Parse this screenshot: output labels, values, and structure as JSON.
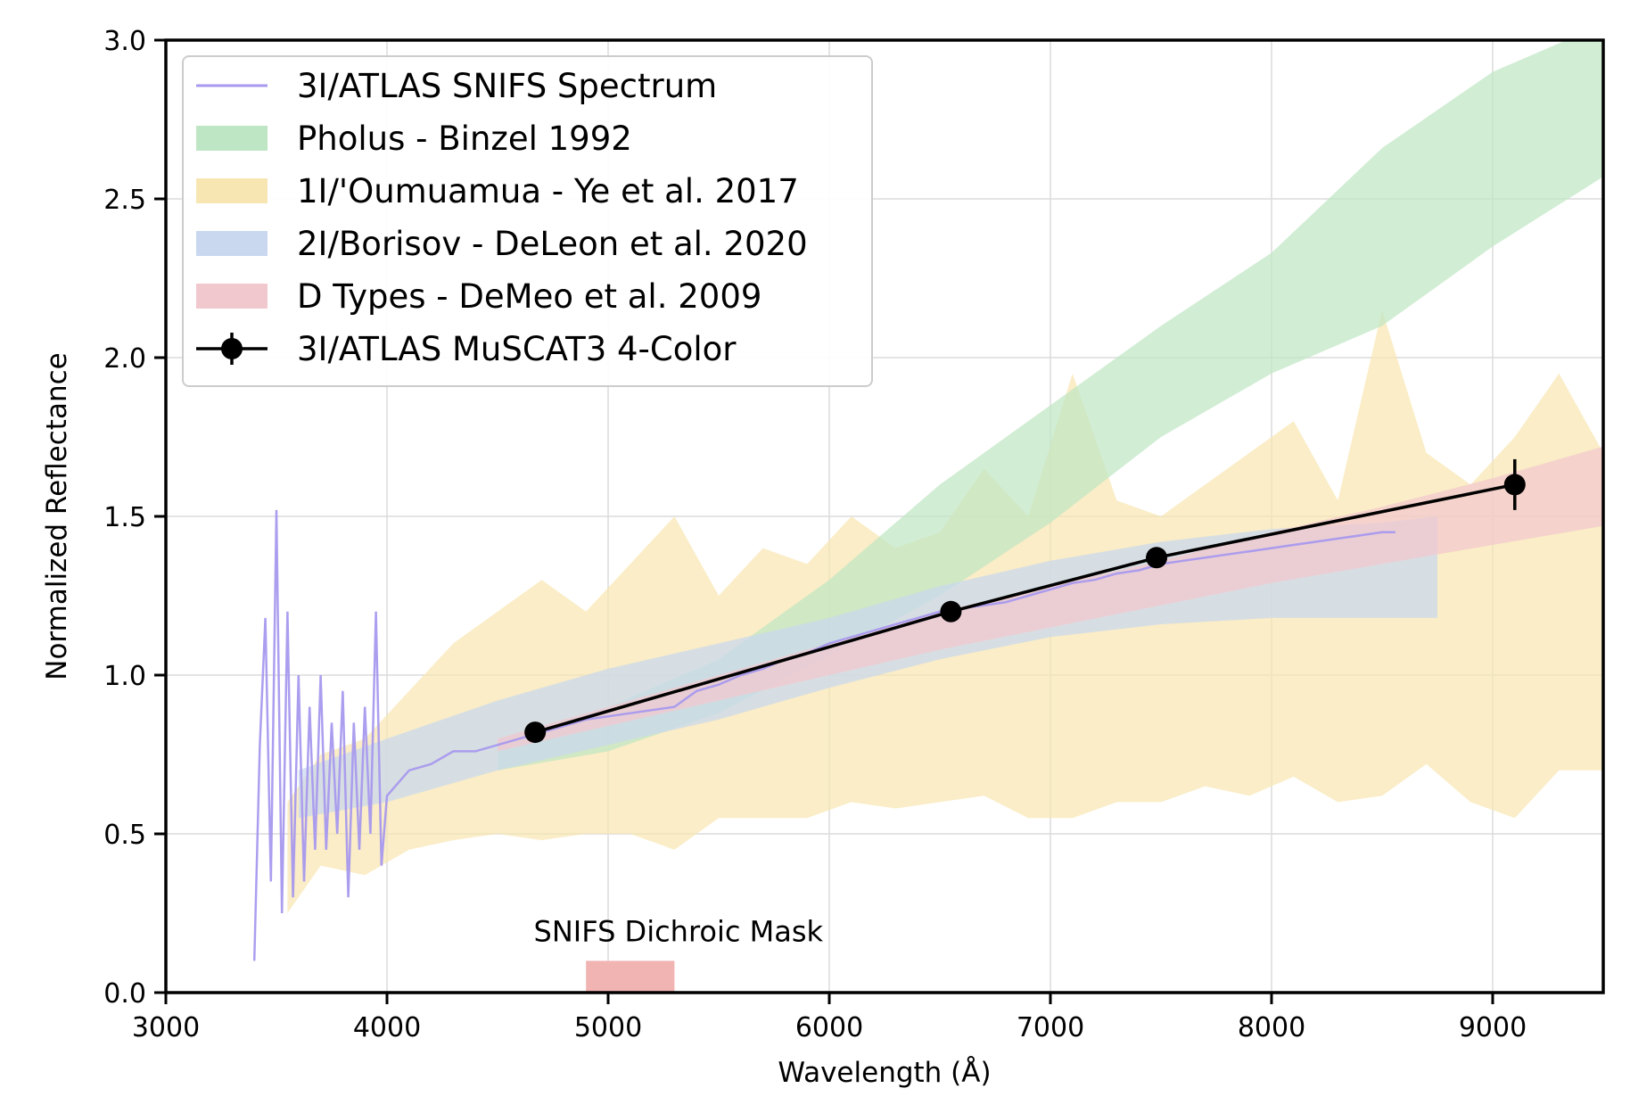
{
  "chart_data": {
    "type": "line",
    "xlabel": "Wavelength (Å)",
    "ylabel": "Normalized Reflectance",
    "xlim": [
      3000,
      9500
    ],
    "ylim": [
      0.0,
      3.0
    ],
    "xticks": [
      3000,
      4000,
      5000,
      6000,
      7000,
      8000,
      9000
    ],
    "xtick_labels": [
      "3000",
      "4000",
      "5000",
      "6000",
      "7000",
      "8000",
      "9000"
    ],
    "yticks": [
      0.0,
      0.5,
      1.0,
      1.5,
      2.0,
      2.5,
      3.0
    ],
    "ytick_labels": [
      "0.0",
      "0.5",
      "1.0",
      "1.5",
      "2.0",
      "2.5",
      "3.0"
    ],
    "grid": true,
    "legend_position": "top-left",
    "annotation": {
      "text": "SNIFS Dichroic Mask",
      "x_range": [
        4900,
        5300
      ],
      "y_range": [
        0.0,
        0.1
      ],
      "color": "#f2b3b3"
    },
    "series": [
      {
        "name": "3I/ATLAS SNIFS Spectrum",
        "kind": "line",
        "color": "#a899ee",
        "x": [
          3400,
          3425,
          3450,
          3475,
          3500,
          3525,
          3550,
          3575,
          3600,
          3625,
          3650,
          3675,
          3700,
          3725,
          3750,
          3775,
          3800,
          3825,
          3850,
          3875,
          3900,
          3925,
          3950,
          3975,
          4000,
          4100,
          4200,
          4300,
          4400,
          4500,
          4600,
          4700,
          4800,
          4900,
          5300,
          5400,
          5500,
          5600,
          5700,
          5800,
          5900,
          6000,
          6100,
          6200,
          6300,
          6400,
          6500,
          6600,
          6700,
          6800,
          6900,
          7000,
          7100,
          7200,
          7300,
          7400,
          7500,
          7600,
          7700,
          7800,
          7900,
          8000,
          8100,
          8200,
          8300,
          8400,
          8500,
          8560
        ],
        "y": [
          0.1,
          0.78,
          1.18,
          0.35,
          1.52,
          0.25,
          1.2,
          0.3,
          1.0,
          0.35,
          0.9,
          0.45,
          1.0,
          0.45,
          0.85,
          0.5,
          0.95,
          0.3,
          0.85,
          0.45,
          0.9,
          0.5,
          1.2,
          0.4,
          0.62,
          0.7,
          0.72,
          0.76,
          0.76,
          0.78,
          0.8,
          0.82,
          0.84,
          0.86,
          0.9,
          0.95,
          0.97,
          1.0,
          1.02,
          1.05,
          1.07,
          1.1,
          1.12,
          1.14,
          1.16,
          1.18,
          1.2,
          1.21,
          1.22,
          1.23,
          1.25,
          1.27,
          1.29,
          1.3,
          1.32,
          1.33,
          1.35,
          1.36,
          1.37,
          1.38,
          1.39,
          1.4,
          1.41,
          1.42,
          1.43,
          1.44,
          1.45,
          1.45
        ]
      },
      {
        "name": "Pholus - Binzel 1992",
        "kind": "band",
        "color": "#bfe6c4",
        "x": [
          4500,
          5000,
          5500,
          6000,
          6500,
          7000,
          7500,
          8000,
          8500,
          9000,
          9500
        ],
        "low": [
          0.7,
          0.76,
          0.88,
          1.06,
          1.25,
          1.48,
          1.75,
          1.95,
          2.1,
          2.35,
          2.57
        ],
        "high": [
          0.8,
          0.9,
          1.05,
          1.3,
          1.6,
          1.85,
          2.1,
          2.33,
          2.66,
          2.9,
          3.05
        ]
      },
      {
        "name": "1I/'Oumuamua - Ye et al. 2017",
        "kind": "band",
        "color": "#f8e6b2",
        "x": [
          3550,
          3700,
          3900,
          4100,
          4300,
          4500,
          4700,
          4900,
          5100,
          5300,
          5500,
          5700,
          5900,
          6100,
          6300,
          6500,
          6700,
          6900,
          7100,
          7300,
          7500,
          7700,
          7900,
          8100,
          8300,
          8500,
          8700,
          8900,
          9100,
          9300,
          9500
        ],
        "low": [
          0.25,
          0.4,
          0.37,
          0.45,
          0.48,
          0.5,
          0.48,
          0.5,
          0.5,
          0.45,
          0.55,
          0.55,
          0.55,
          0.6,
          0.58,
          0.6,
          0.62,
          0.55,
          0.55,
          0.6,
          0.6,
          0.65,
          0.62,
          0.68,
          0.6,
          0.62,
          0.72,
          0.6,
          0.55,
          0.7,
          0.7
        ],
        "high": [
          0.6,
          0.75,
          0.8,
          0.95,
          1.1,
          1.2,
          1.3,
          1.2,
          1.35,
          1.5,
          1.25,
          1.4,
          1.35,
          1.5,
          1.4,
          1.45,
          1.65,
          1.5,
          1.95,
          1.55,
          1.5,
          1.6,
          1.7,
          1.8,
          1.55,
          2.15,
          1.7,
          1.6,
          1.75,
          1.95,
          1.7
        ]
      },
      {
        "name": "2I/Borisov - DeLeon et al. 2020",
        "kind": "band",
        "color": "#c9d8ef",
        "x": [
          3600,
          4000,
          4500,
          5000,
          5500,
          6000,
          6500,
          7000,
          7500,
          8000,
          8500,
          8750
        ],
        "low": [
          0.55,
          0.6,
          0.7,
          0.78,
          0.86,
          0.96,
          1.05,
          1.12,
          1.16,
          1.18,
          1.18,
          1.18
        ],
        "high": [
          0.7,
          0.8,
          0.92,
          1.02,
          1.1,
          1.18,
          1.28,
          1.36,
          1.42,
          1.46,
          1.48,
          1.5
        ]
      },
      {
        "name": "D Types - DeMeo et al. 2009",
        "kind": "band",
        "color": "#f2c8cf",
        "x": [
          4500,
          5000,
          5500,
          6000,
          6500,
          7000,
          7500,
          8000,
          8500,
          9000,
          9500
        ],
        "low": [
          0.76,
          0.84,
          0.92,
          1.0,
          1.08,
          1.15,
          1.22,
          1.29,
          1.35,
          1.41,
          1.47
        ],
        "high": [
          0.8,
          0.9,
          1.0,
          1.1,
          1.2,
          1.28,
          1.36,
          1.45,
          1.53,
          1.62,
          1.72
        ]
      },
      {
        "name": "3I/ATLAS MuSCAT3 4-Color",
        "kind": "errorbar",
        "color": "#000000",
        "x": [
          4670,
          6550,
          7480,
          9100
        ],
        "y": [
          0.82,
          1.2,
          1.37,
          1.6
        ],
        "yerr": [
          0.0,
          0.0,
          0.0,
          0.08
        ]
      }
    ]
  }
}
